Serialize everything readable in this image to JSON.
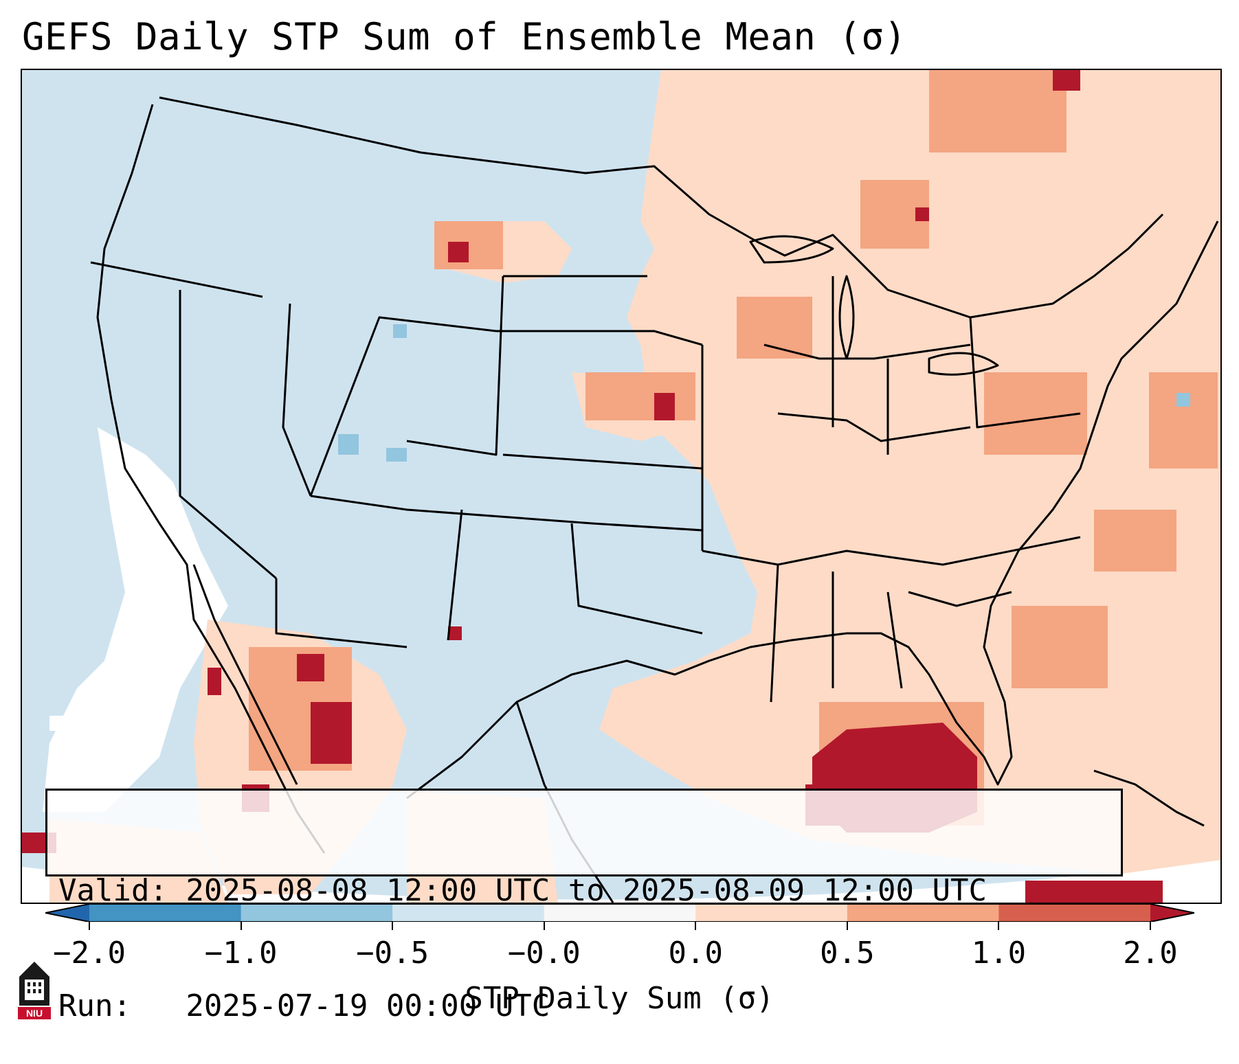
{
  "title": "GEFS Daily STP Sum of Ensemble Mean (σ)",
  "info": {
    "valid_line": "Valid: 2025-08-08 12:00 UTC to 2025-08-09 12:00 UTC",
    "run_line": "Run:   2025-07-19 00:00 UTC"
  },
  "colorbar": {
    "title": "STP Daily Sum (σ)",
    "tick_labels": [
      "−2.0",
      "−1.0",
      "−0.5",
      "−0.0",
      "0.0",
      "0.5",
      "1.0",
      "2.0"
    ],
    "bins": [
      {
        "from": "-inf",
        "to": "-2.0",
        "color": "#2166ac"
      },
      {
        "from": "-2.0",
        "to": "-1.0",
        "color": "#4393c3"
      },
      {
        "from": "-1.0",
        "to": "-0.5",
        "color": "#92c5de"
      },
      {
        "from": "-0.5",
        "to": "-0.0",
        "color": "#d1e5f0"
      },
      {
        "from": "-0.0",
        "to": "0.0",
        "color": "#f7f7f7"
      },
      {
        "from": "0.0",
        "to": "0.5",
        "color": "#fddbc7"
      },
      {
        "from": "0.5",
        "to": "1.0",
        "color": "#f4a582"
      },
      {
        "from": "1.0",
        "to": "2.0",
        "color": "#d6604d"
      },
      {
        "from": "2.0",
        "to": "+inf",
        "color": "#b2182b"
      }
    ]
  },
  "logo": {
    "text": "NIU",
    "icon": "university-tower-icon"
  }
}
